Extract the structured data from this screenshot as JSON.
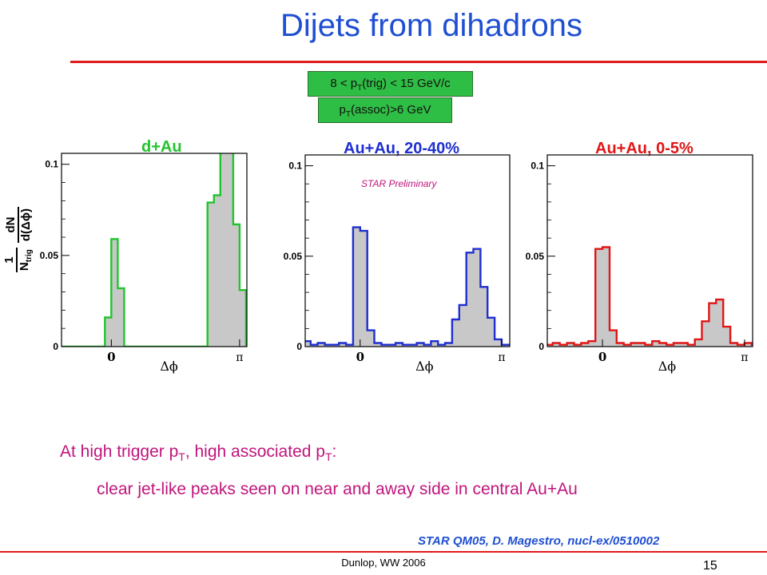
{
  "slide": {
    "title": "Dijets from dihadrons",
    "cut_trig": {
      "pre": "8 < p",
      "sub": "T",
      "post": "(trig) < 15 GeV/c"
    },
    "cut_assoc": {
      "pre": "p",
      "sub": "T",
      "post": "(assoc)>6 GeV"
    },
    "bullet1": {
      "a": "At high trigger p",
      "a_sub": "T",
      "b": ", high associated p",
      "b_sub": "T",
      "c": ":"
    },
    "bullet2": "clear jet-like peaks seen on near and away side in central Au+Au",
    "citation": "STAR QM05, D. Magestro, nucl-ex/0510002",
    "author": "Dunlop, WW 2006",
    "page_number": "15",
    "colors": {
      "title": "#1f4fd2",
      "rule": "#e21b1b",
      "cut_box": "#2fbe45",
      "bullet_text": "#c0157c",
      "citation": "#1f4fd2"
    }
  },
  "ylabel": {
    "num1": "1",
    "den1": "N",
    "den1_sub": "trig",
    "num2": "dN",
    "den2": "d(Δϕ)"
  },
  "chart_data": [
    {
      "type": "bar",
      "title": "d+Au",
      "color": "#22c42e",
      "watermark": "",
      "xlabel": "Δϕ",
      "xtick_labels": [
        "0",
        "π"
      ],
      "xlim": [
        -1.22,
        3.32
      ],
      "ylim": [
        0,
        0.106
      ],
      "yticks": [
        0,
        0.05,
        0.1
      ],
      "ytick_labels": [
        "0",
        "0.05",
        "0.1"
      ],
      "bin_width": 0.1571,
      "bin_edges": [
        -1.2566,
        -1.0996,
        -0.9425,
        -0.7854,
        -0.6283,
        -0.4712,
        -0.3142,
        -0.1571,
        0.0,
        0.1571,
        0.3142,
        0.4712,
        0.6283,
        0.7854,
        0.9425,
        1.0996,
        1.2566,
        1.4137,
        1.5708,
        1.7279,
        1.885,
        2.042,
        2.1991,
        2.3562,
        2.5133,
        2.6704,
        2.8274,
        2.9845,
        3.1416,
        3.2987
      ],
      "values": [
        0,
        0,
        0,
        0,
        0,
        0,
        0,
        0.016,
        0.059,
        0.032,
        0,
        0,
        0,
        0,
        0,
        0,
        0,
        0,
        0,
        0,
        0,
        0,
        0,
        0.079,
        0.083,
        0.112,
        0.112,
        0.067,
        0.031,
        0
      ]
    },
    {
      "type": "bar",
      "title": "Au+Au, 20-40%",
      "color": "#1f2fd0",
      "watermark": "STAR Preliminary",
      "xlabel": "Δϕ",
      "xtick_labels": [
        "0",
        "π"
      ],
      "xlim": [
        -1.22,
        3.32
      ],
      "ylim": [
        0,
        0.106
      ],
      "yticks": [
        0,
        0.05,
        0.1
      ],
      "ytick_labels": [
        "0",
        "0.05",
        "0.1"
      ],
      "bin_width": 0.1571,
      "bin_edges": [
        -1.2566,
        -1.0996,
        -0.9425,
        -0.7854,
        -0.6283,
        -0.4712,
        -0.3142,
        -0.1571,
        0.0,
        0.1571,
        0.3142,
        0.4712,
        0.6283,
        0.7854,
        0.9425,
        1.0996,
        1.2566,
        1.4137,
        1.5708,
        1.7279,
        1.885,
        2.042,
        2.1991,
        2.3562,
        2.5133,
        2.6704,
        2.8274,
        2.9845,
        3.1416,
        3.2987
      ],
      "values": [
        0.003,
        0.001,
        0.002,
        0.001,
        0.001,
        0.002,
        0.001,
        0.066,
        0.064,
        0.009,
        0.002,
        0.001,
        0.001,
        0.002,
        0.001,
        0.001,
        0.002,
        0.001,
        0.003,
        0.001,
        0.002,
        0.015,
        0.023,
        0.052,
        0.054,
        0.033,
        0.016,
        0.004,
        0.001,
        0.001
      ]
    },
    {
      "type": "bar",
      "title": "Au+Au, 0-5%",
      "color": "#e01616",
      "watermark": "",
      "xlabel": "Δϕ",
      "xtick_labels": [
        "0",
        "π"
      ],
      "xlim": [
        -1.22,
        3.32
      ],
      "ylim": [
        0,
        0.106
      ],
      "yticks": [
        0,
        0.05,
        0.1
      ],
      "ytick_labels": [
        "0",
        "0.05",
        "0.1"
      ],
      "bin_width": 0.1571,
      "bin_edges": [
        -1.2566,
        -1.0996,
        -0.9425,
        -0.7854,
        -0.6283,
        -0.4712,
        -0.3142,
        -0.1571,
        0.0,
        0.1571,
        0.3142,
        0.4712,
        0.6283,
        0.7854,
        0.9425,
        1.0996,
        1.2566,
        1.4137,
        1.5708,
        1.7279,
        1.885,
        2.042,
        2.1991,
        2.3562,
        2.5133,
        2.6704,
        2.8274,
        2.9845,
        3.1416,
        3.2987
      ],
      "values": [
        0.001,
        0.002,
        0.001,
        0.002,
        0.001,
        0.002,
        0.003,
        0.054,
        0.055,
        0.009,
        0.002,
        0.001,
        0.002,
        0.002,
        0.001,
        0.003,
        0.002,
        0.001,
        0.002,
        0.002,
        0.001,
        0.004,
        0.014,
        0.024,
        0.026,
        0.011,
        0.002,
        0.001,
        0.002,
        0.001
      ]
    }
  ]
}
